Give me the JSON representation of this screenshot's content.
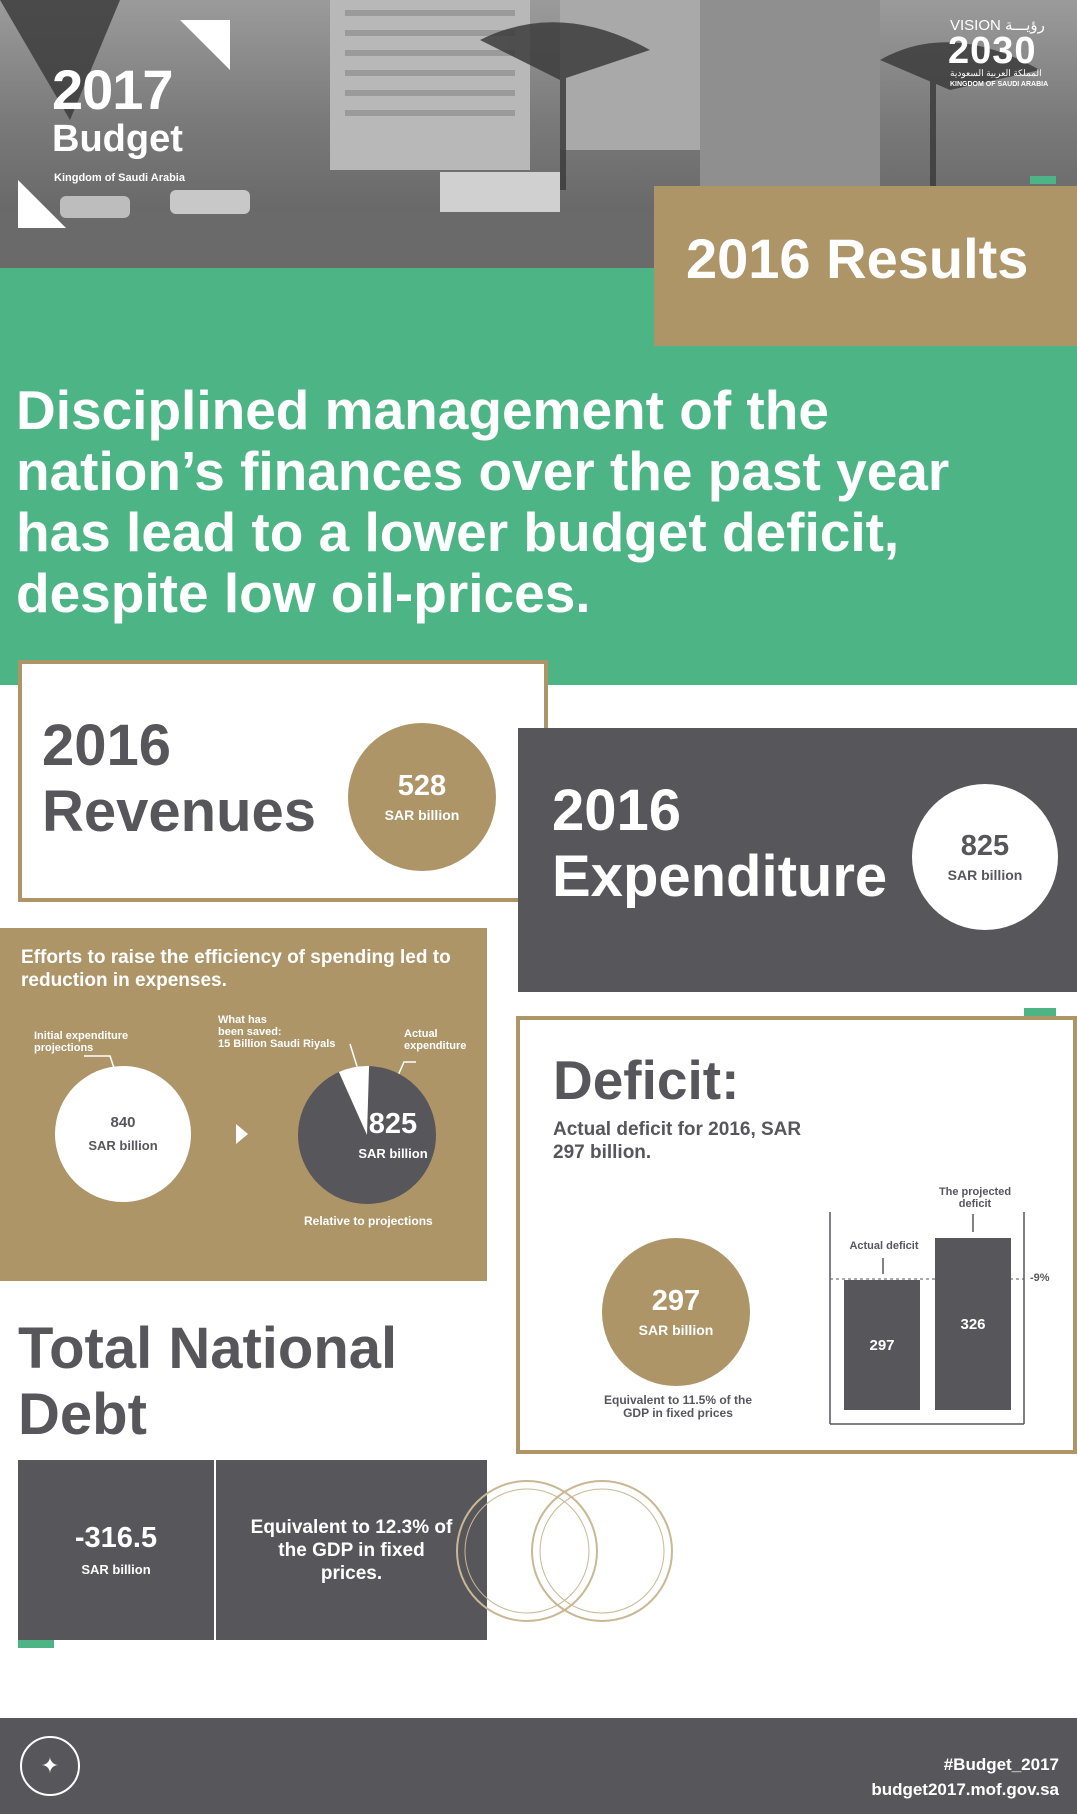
{
  "logo": {
    "year": "2017",
    "word": "Budget",
    "subtitle": "Kingdom of Saudi Arabia"
  },
  "vision": {
    "top": "VISION رؤيـــة",
    "year": "2030",
    "arabic": "المملكة العربية السعودية",
    "kingdom": "KINGDOM OF SAUDI ARABIA"
  },
  "banner": {
    "title": "2016 Results"
  },
  "headline": "Disciplined management of the nation’s finances over the past year has lead to a lower budget deficit, despite low oil-prices.",
  "revenues": {
    "title_year": "2016",
    "title_word": "Revenues",
    "value": "528",
    "unit": "SAR billion"
  },
  "expenditure": {
    "title_year": "2016",
    "title_word": "Expenditure",
    "value": "825",
    "unit": "SAR billion"
  },
  "efficiency": {
    "text": "Efforts to raise the efficiency of spending led to reduction in expenses.",
    "label_initial": "Initial expenditure projections",
    "label_saved_1": "What has",
    "label_saved_2": "been saved:",
    "label_saved_3": "15 Billion Saudi Riyals",
    "label_actual": "Actual expenditure",
    "initial_value": "840",
    "initial_unit": "SAR billion",
    "actual_value": "825",
    "actual_unit": "SAR billion",
    "relative": "Relative to projections",
    "saved_fraction": 0.0179
  },
  "deficit": {
    "title": "Deficit:",
    "subtitle": "Actual deficit for 2016, SAR 297 billion.",
    "value": "297",
    "unit": "SAR billion",
    "equiv": "Equivalent to 11.5% of the GDP in fixed prices",
    "bar_actual_label": "Actual deficit",
    "bar_proj_label": "The projected deficit",
    "bar_actual_value": "297",
    "bar_proj_value": "326",
    "pct": "-9%"
  },
  "debt": {
    "title": "Total National Debt",
    "value": "-316.5",
    "unit": "SAR billion",
    "equiv": "Equivalent to 12.3% of the GDP in fixed prices."
  },
  "footer": {
    "hashtag": "#Budget_2017",
    "url": "budget2017.mof.gov.sa"
  },
  "colors": {
    "green": "#4db585",
    "gold": "#ad9568",
    "slate": "#57565b"
  }
}
